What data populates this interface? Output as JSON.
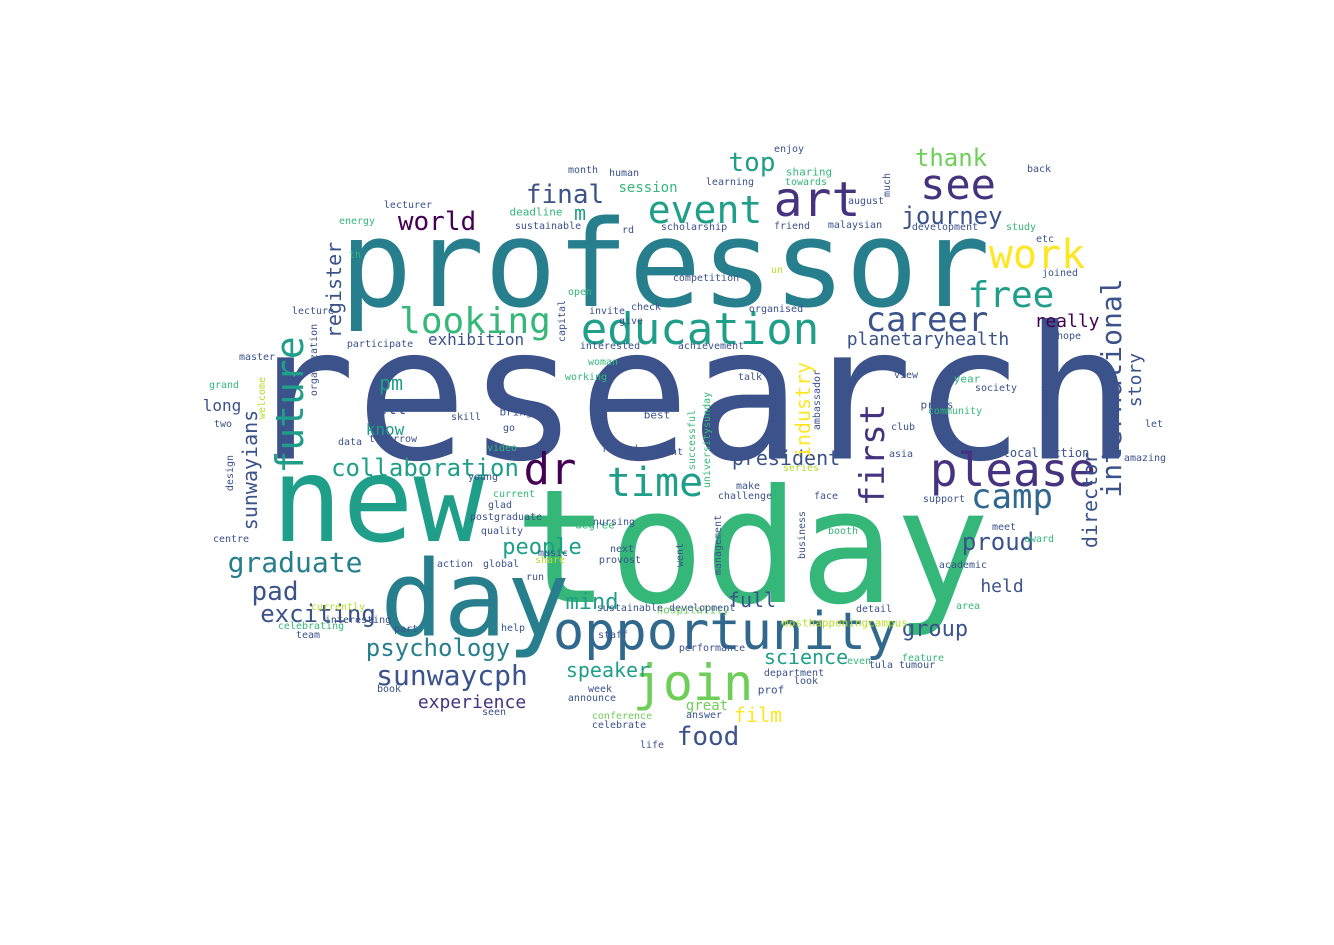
{
  "palette": {
    "navy": "#3b528b",
    "purple": "#46327e",
    "deep": "#440154",
    "teal": "#277f8e",
    "blue": "#31688e",
    "sea": "#1f9e89",
    "green": "#35b779",
    "lime": "#6ece58",
    "yellowgreen": "#b5de2b",
    "yellow": "#fde725"
  },
  "words": [
    {
      "text": "research",
      "color": "navy"
    },
    {
      "text": "today",
      "color": "green"
    },
    {
      "text": "professor",
      "color": "teal"
    },
    {
      "text": "new",
      "color": "sea"
    },
    {
      "text": "day",
      "color": "teal"
    },
    {
      "text": "opportunity",
      "color": "blue"
    },
    {
      "text": "please",
      "color": "purple"
    },
    {
      "text": "education",
      "color": "sea"
    },
    {
      "text": "join",
      "color": "lime"
    },
    {
      "text": "art",
      "color": "purple"
    },
    {
      "text": "see",
      "color": "purple"
    },
    {
      "text": "work",
      "color": "yellow"
    },
    {
      "text": "free",
      "color": "sea"
    },
    {
      "text": "event",
      "color": "sea"
    },
    {
      "text": "camp",
      "color": "blue"
    },
    {
      "text": "future",
      "color": "sea"
    },
    {
      "text": "first",
      "color": "purple"
    },
    {
      "text": "dr",
      "color": "deep"
    },
    {
      "text": "time",
      "color": "sea"
    },
    {
      "text": "career",
      "color": "navy"
    },
    {
      "text": "looking",
      "color": "green"
    },
    {
      "text": "international",
      "color": "navy"
    },
    {
      "text": "graduate",
      "color": "teal"
    },
    {
      "text": "collaboration",
      "color": "sea"
    },
    {
      "text": "sunwaycph",
      "color": "navy"
    },
    {
      "text": "psychology",
      "color": "teal"
    },
    {
      "text": "food",
      "color": "navy"
    },
    {
      "text": "pad",
      "color": "navy"
    },
    {
      "text": "exciting",
      "color": "navy"
    },
    {
      "text": "world",
      "color": "deep"
    },
    {
      "text": "journey",
      "color": "navy"
    },
    {
      "text": "thank",
      "color": "lime"
    },
    {
      "text": "top",
      "color": "sea"
    },
    {
      "text": "final",
      "color": "navy"
    },
    {
      "text": "proud",
      "color": "navy"
    },
    {
      "text": "group",
      "color": "navy"
    },
    {
      "text": "mind",
      "color": "sea"
    },
    {
      "text": "people",
      "color": "sea"
    },
    {
      "text": "speaker",
      "color": "sea"
    },
    {
      "text": "experience",
      "color": "purple"
    },
    {
      "text": "science",
      "color": "sea"
    },
    {
      "text": "film",
      "color": "yellow"
    },
    {
      "text": "full",
      "color": "navy"
    },
    {
      "text": "president",
      "color": "navy"
    },
    {
      "text": "planetaryhealth",
      "color": "navy"
    },
    {
      "text": "register",
      "color": "navy"
    },
    {
      "text": "sunwayians",
      "color": "navy"
    },
    {
      "text": "industry",
      "color": "yellow"
    },
    {
      "text": "director",
      "color": "navy"
    },
    {
      "text": "story",
      "color": "navy"
    },
    {
      "text": "really",
      "color": "deep"
    },
    {
      "text": "held",
      "color": "navy"
    },
    {
      "text": "pm",
      "color": "sea"
    },
    {
      "text": "exhibition",
      "color": "navy"
    },
    {
      "text": "m",
      "color": "sea"
    },
    {
      "text": "well",
      "color": "navy"
    },
    {
      "text": "long",
      "color": "navy"
    },
    {
      "text": "know",
      "color": "sea"
    },
    {
      "text": "session",
      "color": "green"
    },
    {
      "text": "great",
      "color": "lime"
    },
    {
      "text": "conference",
      "color": "lime"
    },
    {
      "text": "hospitality",
      "color": "lime"
    },
    {
      "text": "mosthappeningcampus",
      "color": "yellowgreen"
    },
    {
      "text": "local action",
      "color": "navy"
    },
    {
      "text": "scholarship",
      "color": "navy"
    },
    {
      "text": "sustainable",
      "color": "navy"
    },
    {
      "text": "deadline",
      "color": "green"
    },
    {
      "text": "competition",
      "color": "navy"
    },
    {
      "text": "achievement",
      "color": "navy"
    },
    {
      "text": "interested",
      "color": "navy"
    },
    {
      "text": "participate",
      "color": "navy"
    },
    {
      "text": "master",
      "color": "navy"
    },
    {
      "text": "lecturer",
      "color": "navy"
    },
    {
      "text": "energy",
      "color": "green"
    },
    {
      "text": "month",
      "color": "navy"
    },
    {
      "text": "human",
      "color": "navy"
    },
    {
      "text": "learning",
      "color": "navy"
    },
    {
      "text": "sharing",
      "color": "green"
    },
    {
      "text": "enjoy",
      "color": "navy"
    },
    {
      "text": "towards",
      "color": "green"
    },
    {
      "text": "august",
      "color": "navy"
    },
    {
      "text": "malaysian",
      "color": "navy"
    },
    {
      "text": "development",
      "color": "navy"
    },
    {
      "text": "study",
      "color": "green"
    },
    {
      "text": "joined",
      "color": "navy"
    },
    {
      "text": "hope",
      "color": "navy"
    },
    {
      "text": "view",
      "color": "navy"
    },
    {
      "text": "club",
      "color": "navy"
    },
    {
      "text": "press",
      "color": "navy"
    },
    {
      "text": "community",
      "color": "green"
    },
    {
      "text": "society",
      "color": "navy"
    },
    {
      "text": "year",
      "color": "green"
    },
    {
      "text": "meet",
      "color": "navy"
    },
    {
      "text": "award",
      "color": "green"
    },
    {
      "text": "academic",
      "color": "navy"
    },
    {
      "text": "area",
      "color": "green"
    },
    {
      "text": "feature",
      "color": "green"
    },
    {
      "text": "tula tumour",
      "color": "navy"
    },
    {
      "text": "even",
      "color": "green"
    },
    {
      "text": "detail",
      "color": "navy"
    },
    {
      "text": "booth",
      "color": "green"
    },
    {
      "text": "face",
      "color": "navy"
    },
    {
      "text": "series",
      "color": "yellowgreen"
    },
    {
      "text": "make",
      "color": "navy"
    },
    {
      "text": "challenge",
      "color": "navy"
    },
    {
      "text": "ranged",
      "color": "navy"
    },
    {
      "text": "best",
      "color": "navy"
    },
    {
      "text": "degree",
      "color": "green"
    },
    {
      "text": "tomorrow",
      "color": "navy"
    },
    {
      "text": "data",
      "color": "navy"
    },
    {
      "text": "young",
      "color": "navy"
    },
    {
      "text": "current",
      "color": "green"
    },
    {
      "text": "glad",
      "color": "navy"
    },
    {
      "text": "postgraduate",
      "color": "navy"
    },
    {
      "text": "quality",
      "color": "navy"
    },
    {
      "text": "music",
      "color": "navy"
    },
    {
      "text": "share",
      "color": "yellowgreen"
    },
    {
      "text": "action",
      "color": "navy"
    },
    {
      "text": "global",
      "color": "navy"
    },
    {
      "text": "run",
      "color": "navy"
    },
    {
      "text": "nursing",
      "color": "navy"
    },
    {
      "text": "next",
      "color": "navy"
    },
    {
      "text": "provost",
      "color": "navy"
    },
    {
      "text": "management",
      "color": "navy"
    },
    {
      "text": "staff",
      "color": "navy"
    },
    {
      "text": "week",
      "color": "navy"
    },
    {
      "text": "answer",
      "color": "navy"
    },
    {
      "text": "department",
      "color": "navy"
    },
    {
      "text": "performance",
      "color": "navy"
    },
    {
      "text": "prof",
      "color": "navy"
    },
    {
      "text": "look",
      "color": "navy"
    },
    {
      "text": "celebrate",
      "color": "navy"
    },
    {
      "text": "announce",
      "color": "navy"
    },
    {
      "text": "life",
      "color": "navy"
    },
    {
      "text": "seen",
      "color": "navy"
    },
    {
      "text": "help",
      "color": "navy"
    },
    {
      "text": "book",
      "color": "navy"
    },
    {
      "text": "team",
      "color": "navy"
    },
    {
      "text": "celebrating",
      "color": "green"
    },
    {
      "text": "part",
      "color": "navy"
    },
    {
      "text": "interesting",
      "color": "navy"
    },
    {
      "text": "currently",
      "color": "yellowgreen"
    },
    {
      "text": "centre",
      "color": "navy"
    },
    {
      "text": "design",
      "color": "navy"
    },
    {
      "text": "welcome",
      "color": "yellowgreen"
    },
    {
      "text": "grand",
      "color": "green"
    },
    {
      "text": "two",
      "color": "navy"
    },
    {
      "text": "lecture",
      "color": "navy"
    },
    {
      "text": "bring",
      "color": "navy"
    },
    {
      "text": "go",
      "color": "navy"
    },
    {
      "text": "video",
      "color": "green"
    },
    {
      "text": "open",
      "color": "green"
    },
    {
      "text": "working",
      "color": "green"
    },
    {
      "text": "capital",
      "color": "navy"
    },
    {
      "text": "talk",
      "color": "navy"
    },
    {
      "text": "friend",
      "color": "navy"
    },
    {
      "text": "un",
      "color": "yellowgreen"
    },
    {
      "text": "etc",
      "color": "navy"
    },
    {
      "text": "back",
      "color": "navy"
    },
    {
      "text": "amazing",
      "color": "navy"
    },
    {
      "text": "let",
      "color": "navy"
    },
    {
      "text": "asia",
      "color": "navy"
    },
    {
      "text": "support",
      "color": "navy"
    },
    {
      "text": "organised",
      "color": "navy"
    },
    {
      "text": "invite",
      "color": "navy"
    },
    {
      "text": "check",
      "color": "navy"
    },
    {
      "text": "give",
      "color": "navy"
    },
    {
      "text": "rd",
      "color": "navy"
    },
    {
      "text": "ambassador",
      "color": "navy"
    },
    {
      "text": "much",
      "color": "navy"
    },
    {
      "text": "earth",
      "color": "navy"
    },
    {
      "text": "organization",
      "color": "navy"
    },
    {
      "text": "successful",
      "color": "green"
    },
    {
      "text": "universitysunday",
      "color": "green"
    },
    {
      "text": "business",
      "color": "navy"
    },
    {
      "text": "went",
      "color": "navy"
    },
    {
      "text": "th",
      "color": "green"
    },
    {
      "text": "skill",
      "color": "navy"
    },
    {
      "text": "assignment",
      "color": "navy"
    },
    {
      "text": "sustainable development",
      "color": "navy"
    },
    {
      "text": "woman",
      "color": "green"
    }
  ]
}
